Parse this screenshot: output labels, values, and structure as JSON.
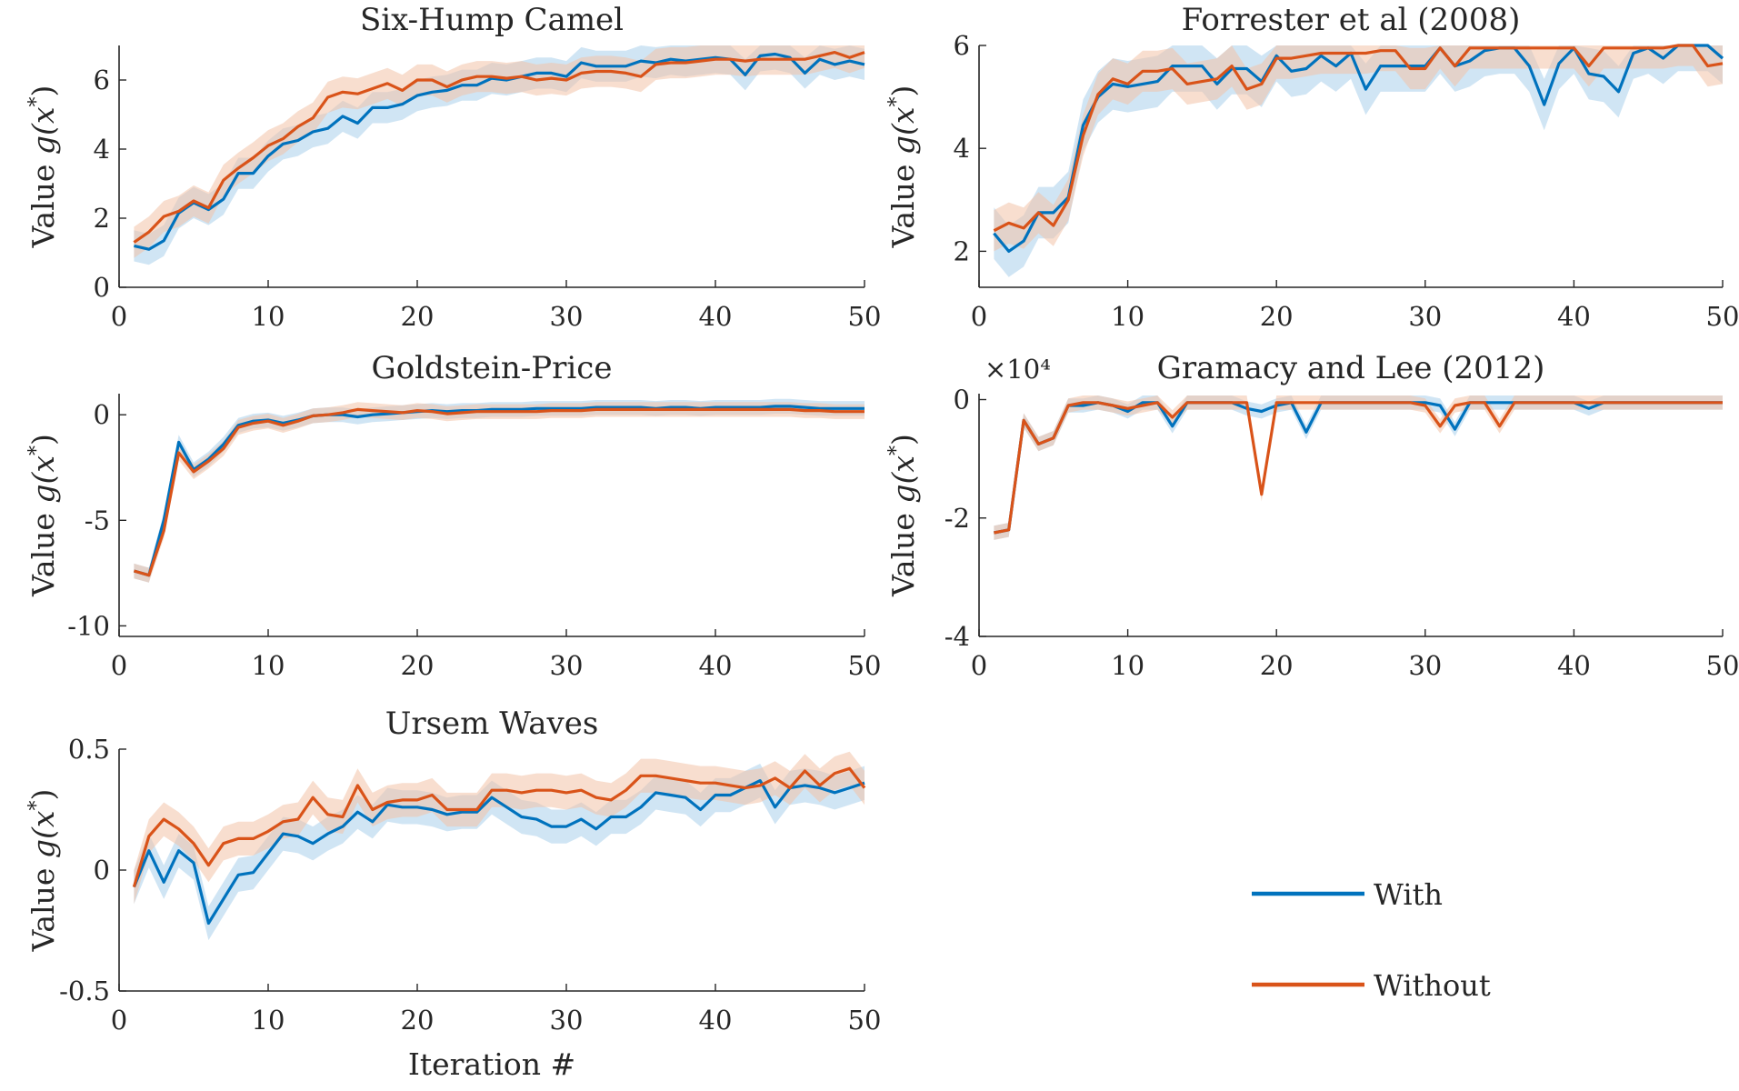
{
  "figure": {
    "legend": {
      "placement": "lower-right",
      "entries": [
        "With",
        "Without"
      ]
    },
    "colors": {
      "with": "#0072BD",
      "without": "#D95319",
      "with_band": "#A9CFEB",
      "without_band": "#F3C2A8"
    }
  },
  "chart_data": [
    {
      "type": "line",
      "title": "Six-Hump Camel",
      "xlabel": "",
      "ylabel": "Value g(x*)",
      "xlim": [
        0,
        50
      ],
      "ylim": [
        0,
        7
      ],
      "xticks": [
        0,
        10,
        20,
        30,
        40,
        50
      ],
      "yticks": [
        0,
        2,
        4,
        6
      ],
      "ytick_labels": [
        "0",
        "2",
        "4",
        "6"
      ],
      "multiplier": "",
      "x_start": 1,
      "series": [
        {
          "name": "With",
          "color": "#0072BD",
          "band": 0.45,
          "values": [
            1.2,
            1.1,
            1.35,
            2.15,
            2.45,
            2.25,
            2.55,
            3.3,
            3.3,
            3.8,
            4.15,
            4.25,
            4.5,
            4.6,
            4.95,
            4.75,
            5.2,
            5.2,
            5.3,
            5.55,
            5.65,
            5.7,
            5.85,
            5.85,
            6.05,
            6.0,
            6.1,
            6.2,
            6.2,
            6.1,
            6.5,
            6.4,
            6.4,
            6.4,
            6.55,
            6.5,
            6.6,
            6.55,
            6.6,
            6.65,
            6.6,
            6.15,
            6.7,
            6.75,
            6.65,
            6.2,
            6.6,
            6.45,
            6.55,
            6.45
          ]
        },
        {
          "name": "Without",
          "color": "#D95319",
          "band": 0.45,
          "values": [
            1.3,
            1.6,
            2.05,
            2.2,
            2.5,
            2.3,
            3.1,
            3.45,
            3.75,
            4.1,
            4.3,
            4.65,
            4.9,
            5.5,
            5.65,
            5.6,
            5.75,
            5.9,
            5.7,
            6.0,
            6.0,
            5.8,
            6.0,
            6.1,
            6.1,
            6.05,
            6.1,
            6.0,
            6.05,
            6.0,
            6.2,
            6.25,
            6.25,
            6.2,
            6.1,
            6.45,
            6.5,
            6.5,
            6.55,
            6.6,
            6.6,
            6.55,
            6.6,
            6.6,
            6.6,
            6.6,
            6.7,
            6.8,
            6.65,
            6.8
          ]
        }
      ]
    },
    {
      "type": "line",
      "title": "Forrester et al (2008)",
      "xlabel": "",
      "ylabel": "Value g(x*)",
      "xlim": [
        0,
        50
      ],
      "ylim": [
        1.3,
        6.0
      ],
      "xticks": [
        0,
        10,
        20,
        30,
        40,
        50
      ],
      "yticks": [
        2,
        4,
        6
      ],
      "ytick_labels": [
        "2",
        "4",
        "6"
      ],
      "multiplier": "",
      "x_start": 1,
      "series": [
        {
          "name": "With",
          "color": "#0072BD",
          "band": 0.5,
          "values": [
            2.35,
            2.0,
            2.2,
            2.75,
            2.75,
            3.05,
            4.45,
            5.0,
            5.25,
            5.2,
            5.25,
            5.3,
            5.6,
            5.6,
            5.6,
            5.25,
            5.55,
            5.55,
            5.3,
            5.8,
            5.5,
            5.55,
            5.8,
            5.6,
            5.85,
            5.15,
            5.6,
            5.6,
            5.6,
            5.6,
            5.95,
            5.6,
            5.7,
            5.9,
            5.95,
            5.95,
            5.6,
            4.85,
            5.65,
            5.95,
            5.45,
            5.4,
            5.1,
            5.85,
            5.95,
            5.75,
            6.0,
            6.0,
            6.0,
            5.75
          ]
        },
        {
          "name": "Without",
          "color": "#D95319",
          "band": 0.4,
          "values": [
            2.4,
            2.55,
            2.45,
            2.75,
            2.5,
            3.0,
            4.25,
            5.05,
            5.35,
            5.25,
            5.5,
            5.5,
            5.55,
            5.25,
            5.3,
            5.35,
            5.6,
            5.15,
            5.25,
            5.75,
            5.75,
            5.8,
            5.85,
            5.85,
            5.85,
            5.85,
            5.9,
            5.9,
            5.55,
            5.55,
            5.95,
            5.6,
            5.95,
            5.95,
            5.95,
            5.95,
            5.95,
            5.95,
            5.95,
            5.95,
            5.6,
            5.95,
            5.95,
            5.95,
            5.95,
            5.95,
            6.0,
            6.0,
            5.6,
            5.65
          ]
        }
      ]
    },
    {
      "type": "line",
      "title": "Goldstein-Price",
      "xlabel": "",
      "ylabel": "Value g(x*)",
      "xlim": [
        0,
        50
      ],
      "ylim": [
        -10.5,
        1.0
      ],
      "xticks": [
        0,
        10,
        20,
        30,
        40,
        50
      ],
      "yticks": [
        -10,
        -5,
        0
      ],
      "ytick_labels": [
        "-10",
        "-5",
        "0"
      ],
      "multiplier": "",
      "x_start": 1,
      "series": [
        {
          "name": "With",
          "color": "#0072BD",
          "band": 0.35,
          "values": [
            -7.4,
            -7.6,
            -5.0,
            -1.3,
            -2.6,
            -2.1,
            -1.4,
            -0.5,
            -0.3,
            -0.25,
            -0.4,
            -0.25,
            -0.05,
            0.0,
            0.0,
            -0.1,
            0.0,
            0.05,
            0.1,
            0.15,
            0.2,
            0.15,
            0.2,
            0.2,
            0.25,
            0.25,
            0.25,
            0.3,
            0.3,
            0.3,
            0.3,
            0.35,
            0.35,
            0.35,
            0.35,
            0.3,
            0.35,
            0.35,
            0.3,
            0.35,
            0.35,
            0.35,
            0.35,
            0.4,
            0.4,
            0.35,
            0.3,
            0.3,
            0.3,
            0.3
          ]
        },
        {
          "name": "Without",
          "color": "#D95319",
          "band": 0.35,
          "values": [
            -7.4,
            -7.6,
            -5.5,
            -1.8,
            -2.7,
            -2.2,
            -1.6,
            -0.6,
            -0.4,
            -0.3,
            -0.5,
            -0.3,
            -0.05,
            0.0,
            0.1,
            0.25,
            0.2,
            0.15,
            0.1,
            0.2,
            0.15,
            0.05,
            0.1,
            0.15,
            0.15,
            0.15,
            0.15,
            0.15,
            0.2,
            0.2,
            0.2,
            0.25,
            0.25,
            0.25,
            0.25,
            0.25,
            0.25,
            0.25,
            0.25,
            0.25,
            0.25,
            0.25,
            0.25,
            0.25,
            0.25,
            0.2,
            0.2,
            0.15,
            0.15,
            0.15
          ]
        }
      ]
    },
    {
      "type": "line",
      "title": "Gramacy and Lee (2012)",
      "xlabel": "",
      "ylabel": "Value g(x*)",
      "xlim": [
        0,
        50
      ],
      "ylim": [
        -40000,
        1000
      ],
      "xticks": [
        0,
        10,
        20,
        30,
        40,
        50
      ],
      "yticks": [
        -40000,
        -20000,
        0
      ],
      "ytick_labels": [
        "-4",
        "-2",
        "0"
      ],
      "multiplier": "×10⁴",
      "x_start": 1,
      "series": [
        {
          "name": "With",
          "color": "#0072BD",
          "band": 1200,
          "values": [
            -22500,
            -22000,
            -3500,
            -7500,
            -6500,
            -1000,
            -1000,
            -500,
            -1000,
            -2000,
            -500,
            -500,
            -4500,
            -500,
            -500,
            -500,
            -500,
            -1500,
            -2000,
            -1000,
            -500,
            -5500,
            -500,
            -500,
            -500,
            -500,
            -500,
            -500,
            -500,
            -500,
            -1000,
            -5000,
            -500,
            -500,
            -500,
            -500,
            -500,
            -500,
            -500,
            -500,
            -1500,
            -500,
            -500,
            -500,
            -500,
            -500,
            -500,
            -500,
            -500,
            -500
          ]
        },
        {
          "name": "Without",
          "color": "#D95319",
          "band": 1200,
          "values": [
            -22500,
            -22000,
            -3500,
            -7500,
            -6500,
            -1000,
            -500,
            -500,
            -1000,
            -1500,
            -1000,
            -500,
            -3000,
            -500,
            -500,
            -500,
            -500,
            -500,
            -16000,
            -500,
            -500,
            -500,
            -500,
            -500,
            -500,
            -500,
            -500,
            -500,
            -500,
            -1000,
            -4500,
            -1000,
            -500,
            -500,
            -4500,
            -500,
            -500,
            -500,
            -500,
            -500,
            -500,
            -500,
            -500,
            -500,
            -500,
            -500,
            -500,
            -500,
            -500,
            -500
          ]
        }
      ]
    },
    {
      "type": "line",
      "title": "Ursem Waves",
      "xlabel": "Iteration #",
      "ylabel": "Value g(x*)",
      "xlim": [
        0,
        50
      ],
      "ylim": [
        -0.5,
        0.5
      ],
      "xticks": [
        0,
        10,
        20,
        30,
        40,
        50
      ],
      "yticks": [
        -0.5,
        0,
        0.5
      ],
      "ytick_labels": [
        "-0.5",
        "0",
        "0.5"
      ],
      "multiplier": "",
      "x_start": 1,
      "series": [
        {
          "name": "With",
          "color": "#0072BD",
          "band": 0.07,
          "values": [
            -0.07,
            0.08,
            -0.05,
            0.08,
            0.03,
            -0.22,
            -0.12,
            -0.02,
            -0.01,
            0.07,
            0.15,
            0.14,
            0.11,
            0.15,
            0.18,
            0.24,
            0.2,
            0.27,
            0.26,
            0.26,
            0.25,
            0.23,
            0.24,
            0.24,
            0.3,
            0.26,
            0.22,
            0.21,
            0.18,
            0.18,
            0.21,
            0.17,
            0.22,
            0.22,
            0.26,
            0.32,
            0.31,
            0.3,
            0.25,
            0.31,
            0.31,
            0.34,
            0.37,
            0.26,
            0.34,
            0.35,
            0.34,
            0.32,
            0.34,
            0.36
          ]
        },
        {
          "name": "Without",
          "color": "#D95319",
          "band": 0.07,
          "values": [
            -0.07,
            0.14,
            0.21,
            0.17,
            0.11,
            0.02,
            0.11,
            0.13,
            0.13,
            0.16,
            0.2,
            0.21,
            0.3,
            0.23,
            0.22,
            0.35,
            0.25,
            0.28,
            0.29,
            0.29,
            0.31,
            0.25,
            0.25,
            0.25,
            0.33,
            0.33,
            0.32,
            0.33,
            0.33,
            0.32,
            0.33,
            0.3,
            0.29,
            0.33,
            0.39,
            0.39,
            0.38,
            0.37,
            0.36,
            0.36,
            0.35,
            0.34,
            0.35,
            0.38,
            0.34,
            0.41,
            0.35,
            0.4,
            0.42,
            0.34
          ]
        }
      ]
    }
  ]
}
